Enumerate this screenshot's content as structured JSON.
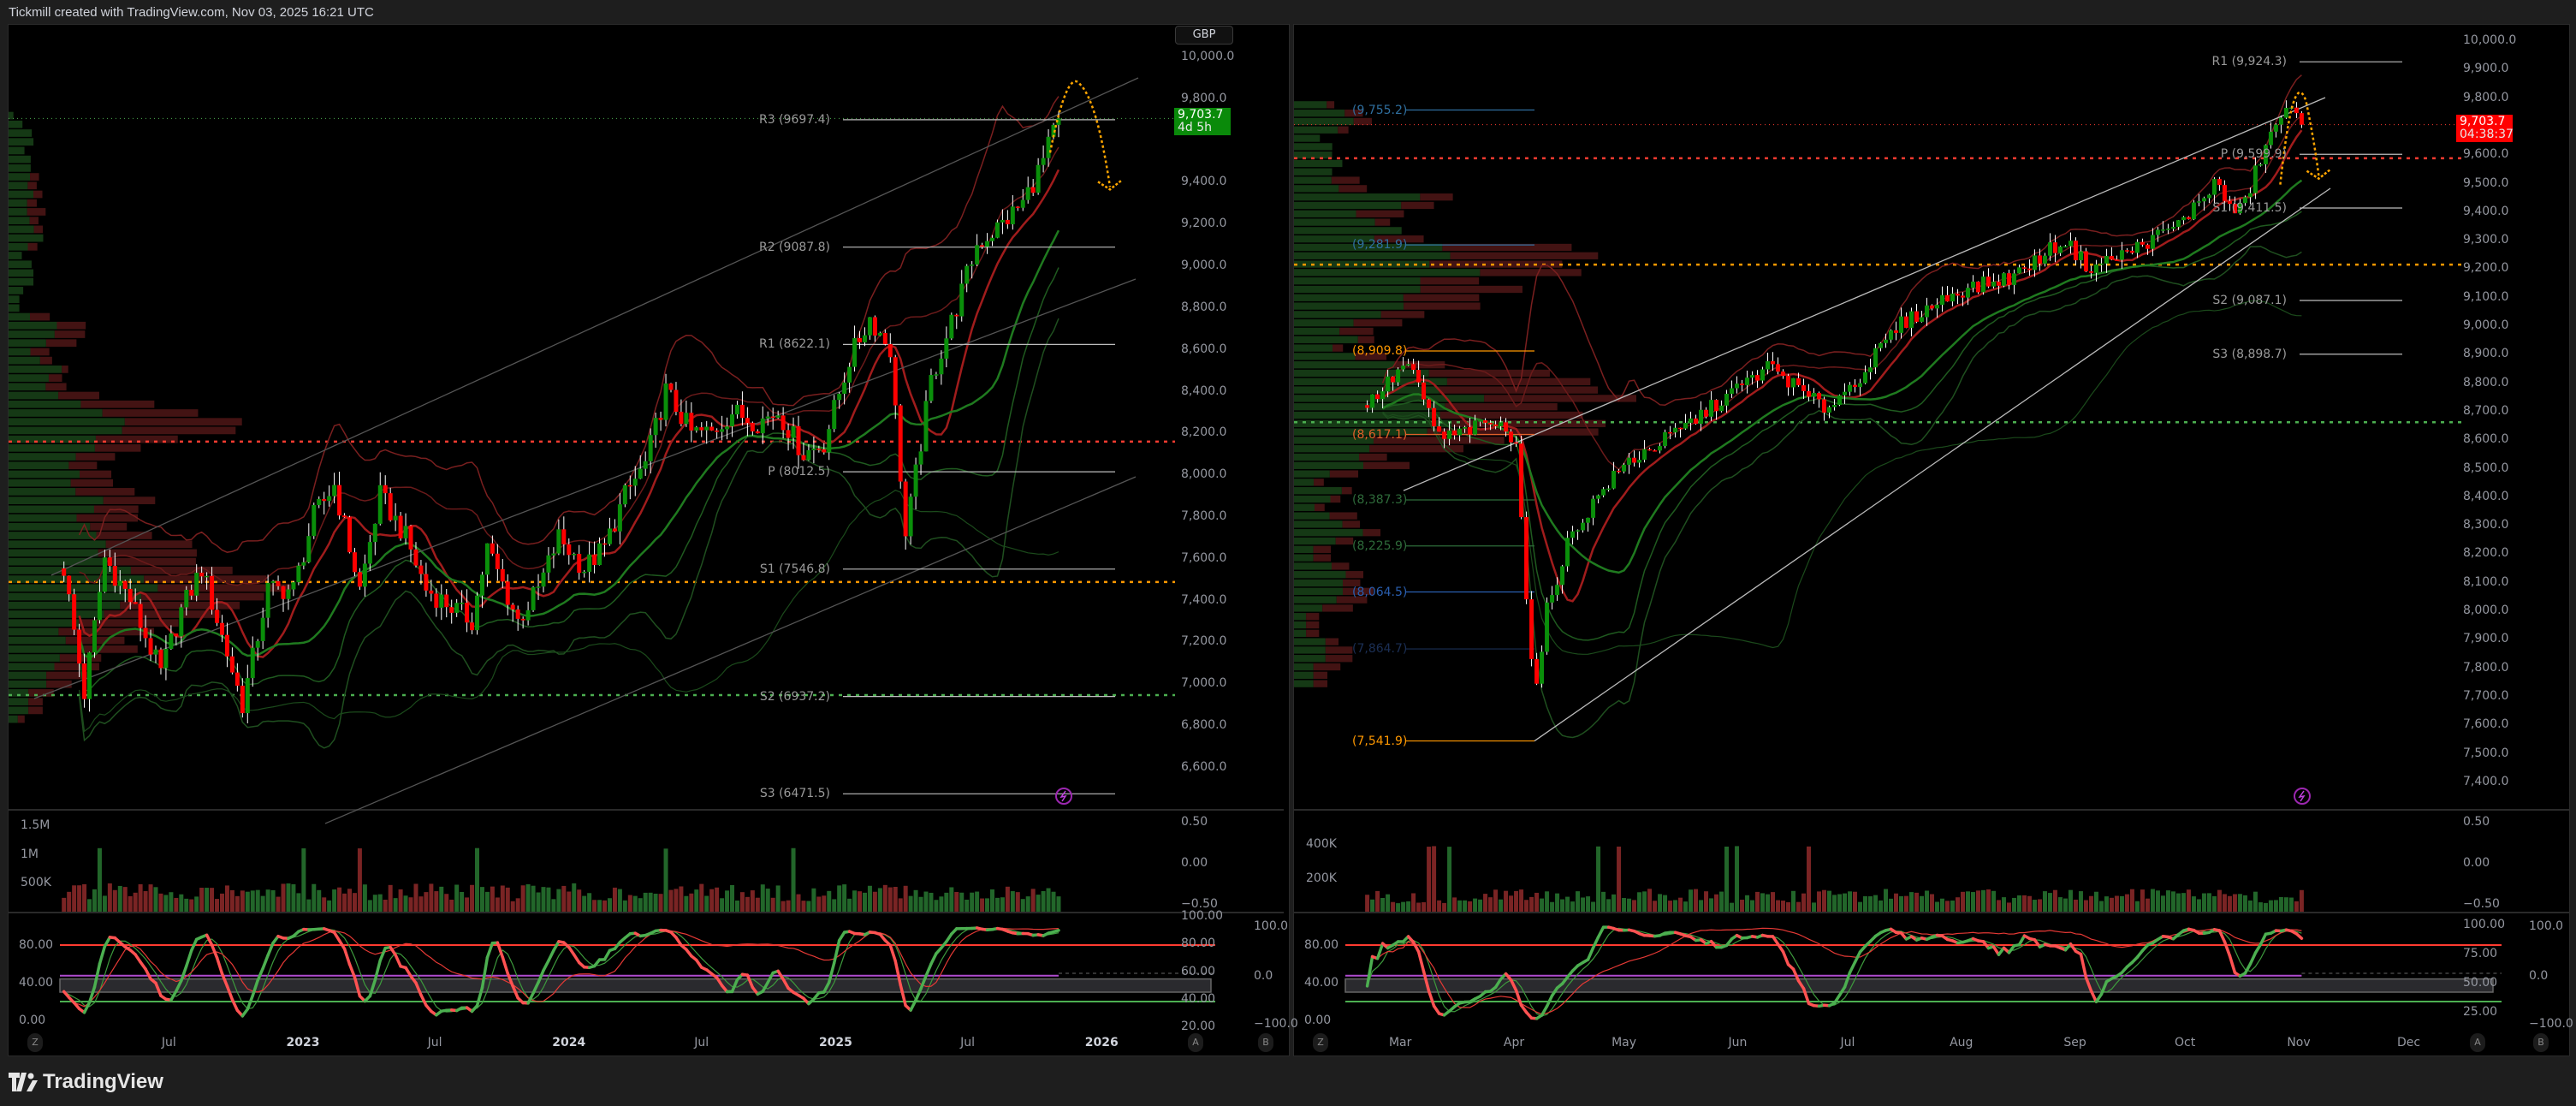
{
  "header": {
    "title": "Tickmill created with TradingView.com, Nov 03, 2025 16:21 UTC"
  },
  "footer": {
    "logo_text": "TradingView"
  },
  "colors": {
    "up": "#0a8f0a",
    "down": "#ff0000",
    "last_price_left": "#0a8a0a",
    "last_price_right": "#ff0000",
    "stoch_fast_up": "#4caf50",
    "stoch_fast_down": "#ff5252",
    "overbought": "#ff3b30",
    "oversold": "#4caf50",
    "midline": "#b04cd0",
    "projection": "#ffa500"
  },
  "charts": [
    {
      "currency_button": "GBP",
      "last_price": "9,703.7",
      "countdown": "4d 5h",
      "price_axis": [
        "10,000.0",
        "9,800.0",
        "9,400.0",
        "9,200.0",
        "9,000.0",
        "8,800.0",
        "8,600.0",
        "8,400.0",
        "8,200.0",
        "8,000.0",
        "7,800.0",
        "7,600.0",
        "7,400.0",
        "7,200.0",
        "7,000.0",
        "6,800.0",
        "6,600.0"
      ],
      "pivots": [
        {
          "label": "R3 (9697.4)",
          "value": 9697.4
        },
        {
          "label": "R2 (9087.8)",
          "value": 9087.8
        },
        {
          "label": "R1 (8622.1)",
          "value": 8622.1
        },
        {
          "label": "P (8012.5)",
          "value": 8012.5
        },
        {
          "label": "S1 (7546.8)",
          "value": 7546.8
        },
        {
          "label": "S2 (6937.2)",
          "value": 6937.2
        },
        {
          "label": "S3 (6471.5)",
          "value": 6471.5
        }
      ],
      "levels": [
        {
          "value": 8157,
          "color": "#ff3b30"
        },
        {
          "value": 7485,
          "color": "#ff9800"
        },
        {
          "value": 6944,
          "color": "#4caf50"
        }
      ],
      "volume_axis_left": [
        {
          "label": "1.5M",
          "value": 1500000
        },
        {
          "label": "1M",
          "value": 1000000
        },
        {
          "label": "500K",
          "value": 500000
        }
      ],
      "volume_axis_right": [
        "0.50",
        "0.00",
        "−0.50"
      ],
      "stoch_axis_left": [
        "80.00",
        "40.00",
        "0.00"
      ],
      "stoch_axis_right": [
        "100.00",
        "80.00",
        "60.00",
        "40.00",
        "20.00"
      ],
      "stoch_axis_far": [
        "100.0",
        "0.0",
        "−100.0"
      ],
      "time_axis": [
        {
          "label": "Jul",
          "date": "2022-07-01",
          "major": false
        },
        {
          "label": "2023",
          "date": "2023-01-01",
          "major": true
        },
        {
          "label": "Jul",
          "date": "2023-07-01",
          "major": false
        },
        {
          "label": "2024",
          "date": "2024-01-01",
          "major": true
        },
        {
          "label": "Jul",
          "date": "2024-07-01",
          "major": false
        },
        {
          "label": "2025",
          "date": "2025-01-01",
          "major": true
        },
        {
          "label": "Jul",
          "date": "2025-07-01",
          "major": false
        },
        {
          "label": "2026",
          "date": "2026-01-01",
          "major": true
        }
      ],
      "scale_buttons": [
        "Z",
        "A",
        "B"
      ]
    },
    {
      "last_price": "9,703.7",
      "countdown": "04:38:37",
      "price_axis": [
        "10,000.0",
        "9,900.0",
        "9,800.0",
        "9,600.0",
        "9,500.0",
        "9,400.0",
        "9,300.0",
        "9,200.0",
        "9,100.0",
        "9,000.0",
        "8,900.0",
        "8,800.0",
        "8,700.0",
        "8,600.0",
        "8,500.0",
        "8,400.0",
        "8,300.0",
        "8,200.0",
        "8,100.0",
        "8,000.0",
        "7,900.0",
        "7,800.0",
        "7,700.0",
        "7,600.0",
        "7,500.0",
        "7,400.0"
      ],
      "pivots": [
        {
          "label": "R1 (9,924.3)",
          "value": 9924.3
        },
        {
          "label": "P (9,599.9)",
          "value": 9599.9
        },
        {
          "label": "S1 (9,411.5)",
          "value": 9411.5
        },
        {
          "label": "S2 (9,087.1)",
          "value": 9087.1
        },
        {
          "label": "S3 (8,898.7)",
          "value": 8898.7
        }
      ],
      "fib_levels": [
        {
          "label": "(9,755.2)",
          "value": 9755.2,
          "color": "#2f6f9f"
        },
        {
          "label": "(9,281.9)",
          "value": 9281.9,
          "color": "#2f6f9f"
        },
        {
          "label": "(8,909.8)",
          "value": 8909.8,
          "color": "#ff9800"
        },
        {
          "label": "(8,617.1)",
          "value": 8617.1,
          "color": "#e0602a"
        },
        {
          "label": "(8,387.3)",
          "value": 8387.3,
          "color": "#2e6b3a"
        },
        {
          "label": "(8,225.9)",
          "value": 8225.9,
          "color": "#2e6b3a"
        },
        {
          "label": "(8,064.5)",
          "value": 8064.5,
          "color": "#2a5fb0"
        },
        {
          "label": "(7,864.7)",
          "value": 7864.7,
          "color": "#1b2f55"
        },
        {
          "label": "(7,541.9)",
          "value": 7541.9,
          "color": "#ff9800"
        }
      ],
      "levels": [
        {
          "value": 9586,
          "color": "#ff3b30"
        },
        {
          "value": 9213,
          "color": "#ff9800"
        },
        {
          "value": 8660,
          "color": "#4caf50"
        }
      ],
      "volume_axis_left": [
        {
          "label": "400K",
          "value": 400000
        },
        {
          "label": "200K",
          "value": 200000
        }
      ],
      "volume_axis_right": [
        "0.50",
        "0.00",
        "−0.50"
      ],
      "stoch_axis_left": [
        "80.00",
        "40.00",
        "0.00"
      ],
      "stoch_axis_right": [
        "100.00",
        "75.00",
        "50.00",
        "25.00"
      ],
      "stoch_axis_far": [
        "100.0",
        "0.0",
        "−100.0"
      ],
      "time_axis": [
        {
          "label": "Mar",
          "date": "2025-03-01",
          "major": false
        },
        {
          "label": "Apr",
          "date": "2025-04-01",
          "major": false
        },
        {
          "label": "May",
          "date": "2025-05-01",
          "major": false
        },
        {
          "label": "Jun",
          "date": "2025-06-01",
          "major": false
        },
        {
          "label": "Jul",
          "date": "2025-07-01",
          "major": false
        },
        {
          "label": "Aug",
          "date": "2025-08-01",
          "major": false
        },
        {
          "label": "Sep",
          "date": "2025-09-01",
          "major": false
        },
        {
          "label": "Oct",
          "date": "2025-10-01",
          "major": false
        },
        {
          "label": "Nov",
          "date": "2025-11-01",
          "major": false
        },
        {
          "label": "Dec",
          "date": "2025-12-01",
          "major": false
        }
      ],
      "scale_buttons": [
        "Z",
        "A",
        "B"
      ]
    }
  ],
  "chart_data": [
    {
      "type": "candlestick",
      "interval": "weekly",
      "currency": "GBP",
      "ylim": [
        6400,
        10050
      ],
      "grid": false,
      "x": [
        "2022-02-07",
        "2022-03-07",
        "2022-04-04",
        "2022-05-09",
        "2022-06-20",
        "2022-07-18",
        "2022-08-15",
        "2022-10-10",
        "2022-11-14",
        "2022-12-19",
        "2023-01-16",
        "2023-02-13",
        "2023-03-20",
        "2023-04-17",
        "2023-05-22",
        "2023-06-19",
        "2023-07-10",
        "2023-08-21",
        "2023-09-11",
        "2023-10-23",
        "2023-11-20",
        "2023-12-18",
        "2024-01-22",
        "2024-02-19",
        "2024-03-18",
        "2024-04-15",
        "2024-05-13",
        "2024-06-17",
        "2024-07-15",
        "2024-08-12",
        "2024-09-16",
        "2024-10-14",
        "2024-11-18",
        "2024-12-16",
        "2025-01-20",
        "2025-02-17",
        "2025-03-17",
        "2025-04-07",
        "2025-05-12",
        "2025-06-16",
        "2025-07-14",
        "2025-08-18",
        "2025-09-15",
        "2025-10-13",
        "2025-11-03"
      ],
      "close": [
        7550,
        6950,
        7600,
        7400,
        7050,
        7350,
        7550,
        6900,
        7450,
        7450,
        7800,
        7950,
        7450,
        7900,
        7700,
        7450,
        7400,
        7300,
        7650,
        7300,
        7450,
        7700,
        7550,
        7650,
        7900,
        8050,
        8400,
        8200,
        8200,
        8300,
        8250,
        8300,
        8100,
        8150,
        8550,
        8750,
        8600,
        7700,
        8450,
        8800,
        9100,
        9200,
        9300,
        9500,
        9703.7
      ],
      "last": 9703.7
    },
    {
      "type": "candlestick",
      "interval": "daily",
      "currency": "GBP",
      "ylim": [
        7350,
        10020
      ],
      "grid": false,
      "x": [
        "2025-02-20",
        "2025-03-03",
        "2025-03-12",
        "2025-03-26",
        "2025-04-02",
        "2025-04-04",
        "2025-04-07",
        "2025-04-10",
        "2025-04-16",
        "2025-04-25",
        "2025-05-02",
        "2025-05-15",
        "2025-05-30",
        "2025-06-10",
        "2025-06-20",
        "2025-06-25",
        "2025-07-03",
        "2025-07-15",
        "2025-07-31",
        "2025-08-15",
        "2025-08-29",
        "2025-09-05",
        "2025-09-16",
        "2025-09-30",
        "2025-10-09",
        "2025-10-15",
        "2025-10-17",
        "2025-10-22",
        "2025-10-28",
        "2025-11-03"
      ],
      "close": [
        8720,
        8870,
        8600,
        8660,
        8600,
        8080,
        7700,
        8000,
        8250,
        8420,
        8520,
        8620,
        8760,
        8860,
        8750,
        8710,
        8800,
        9000,
        9120,
        9170,
        9300,
        9200,
        9260,
        9360,
        9500,
        9390,
        9420,
        9600,
        9760,
        9703.7
      ],
      "last": 9703.7
    }
  ]
}
